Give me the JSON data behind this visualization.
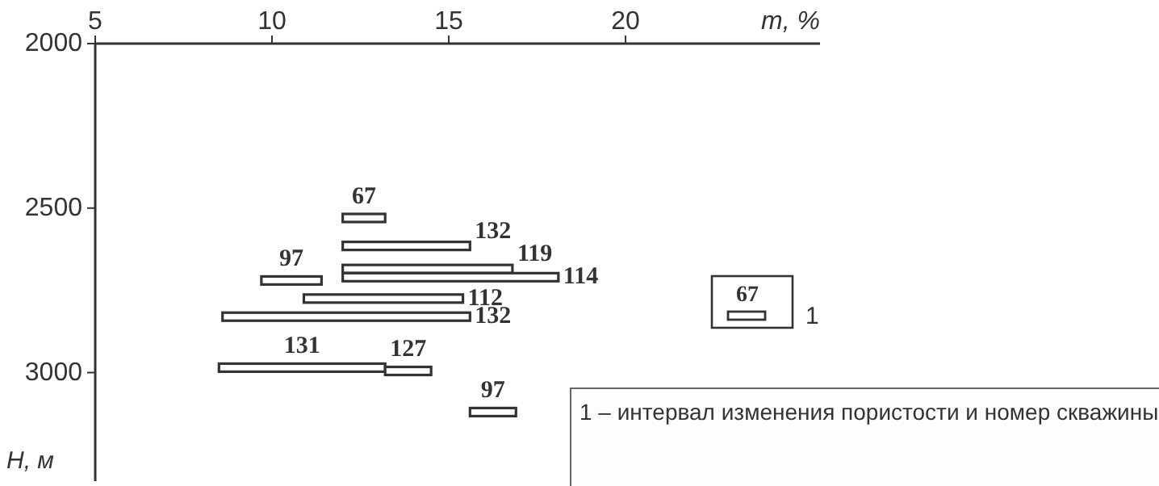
{
  "chart_data": {
    "type": "bar",
    "orientation": "horizontal",
    "xlabel": "m, %",
    "ylabel": "H, м",
    "xlim": [
      5,
      25.5
    ],
    "xticks": [
      5,
      10,
      15,
      20
    ],
    "ylim": [
      3330,
      2000
    ],
    "yticks": [
      2000,
      2500,
      3000
    ],
    "x": [
      2530,
      2615,
      2685,
      2710,
      2720,
      2775,
      2830,
      2985,
      2995,
      3120
    ],
    "base": [
      12.0,
      12.0,
      12.0,
      12.0,
      9.7,
      10.9,
      8.6,
      8.5,
      13.2,
      15.6
    ],
    "values": [
      1.2,
      3.6,
      4.8,
      6.1,
      1.7,
      4.5,
      7.0,
      4.7,
      1.3,
      1.3
    ],
    "colors": [
      "#ffffff",
      "#ffffff",
      "#ffffff",
      "#ffffff",
      "#ffffff",
      "#ffffff",
      "#ffffff",
      "#ffffff",
      "#ffffff",
      "#ffffff"
    ],
    "legend_title": "1",
    "annotations": [
      {
        "text": "67",
        "x": 13.2,
        "y": 2530
      },
      {
        "text": "132",
        "x": 15.6,
        "y": 2615
      },
      {
        "text": "119",
        "x": 16.8,
        "y": 2685
      },
      {
        "text": "114",
        "x": 18.1,
        "y": 2710
      },
      {
        "text": "97",
        "x": 11.4,
        "y": 2720
      },
      {
        "text": "112",
        "x": 15.4,
        "y": 2775
      },
      {
        "text": "132",
        "x": 15.6,
        "y": 2830
      },
      {
        "text": "131",
        "x": 13.2,
        "y": 2985
      },
      {
        "text": "127",
        "x": 14.5,
        "y": 2995
      },
      {
        "text": "97",
        "x": 16.9,
        "y": 3120
      },
      "67",
      "1 – интервал изменения пористости и номер скважины"
    ]
  }
}
